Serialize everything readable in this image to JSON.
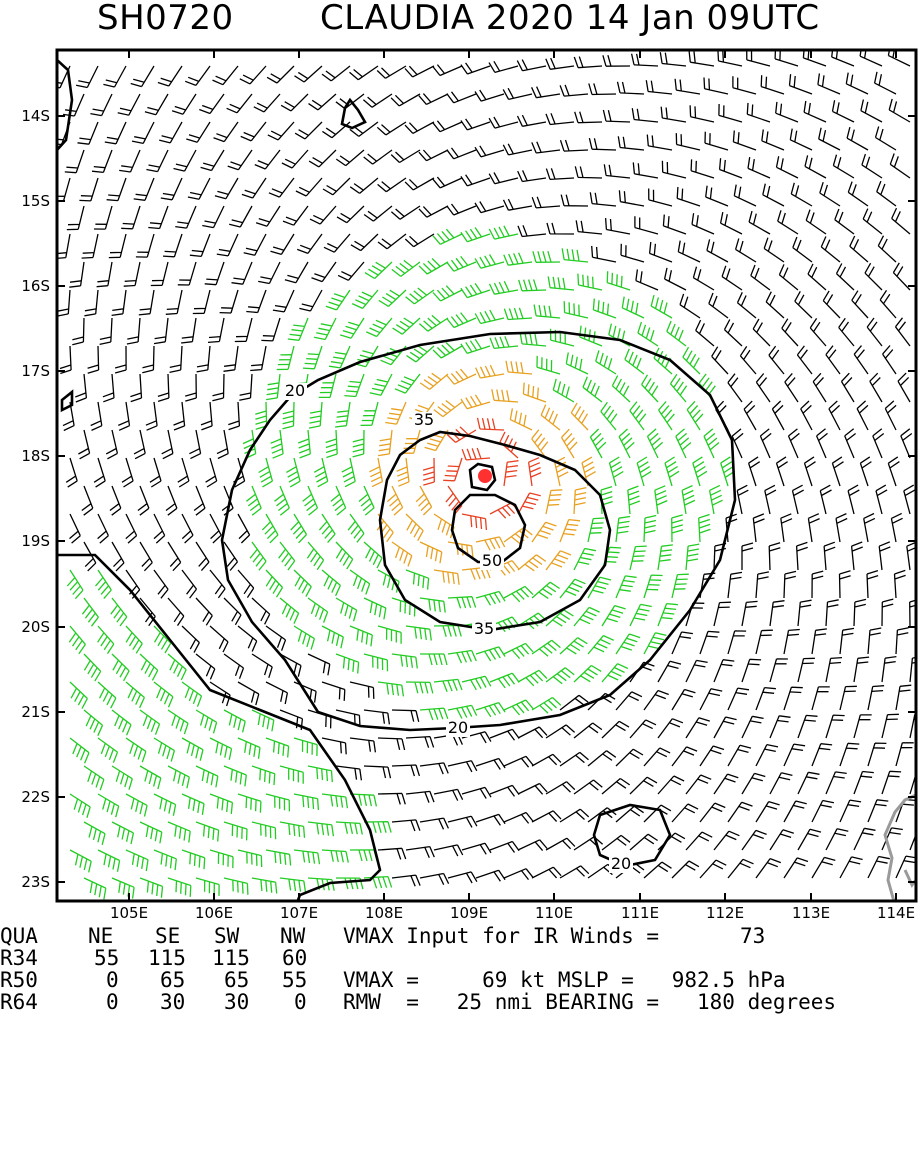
{
  "title": {
    "storm_id": "SH0720",
    "storm": "CLAUDIA 2020 14 Jan 09UTC"
  },
  "map": {
    "lon_ticks": [
      "105E",
      "106E",
      "107E",
      "108E",
      "109E",
      "110E",
      "111E",
      "112E",
      "113E",
      "114E"
    ],
    "lat_ticks": [
      "14S",
      "15S",
      "16S",
      "17S",
      "18S",
      "19S",
      "20S",
      "21S",
      "22S",
      "23S"
    ],
    "contour_labels": [
      "20",
      "35",
      "50",
      "35",
      "20",
      "20"
    ],
    "storm_center": "red-dot",
    "colors": {
      "frame": "#000000",
      "below34": "#000000",
      "r34": "#22cc22",
      "r50": "#e8a020",
      "r64": "#e84020",
      "coast": "#9a9a9a",
      "center": "#ff3030"
    }
  },
  "info": {
    "header": [
      "QUA",
      "NE",
      "SE",
      "SW",
      "NW"
    ],
    "r34": [
      "R34",
      "55",
      "115",
      "115",
      "60"
    ],
    "r50": [
      "R50",
      "0",
      "65",
      "65",
      "55"
    ],
    "r64": [
      "R64",
      "0",
      "30",
      "30",
      "0"
    ],
    "vmax_input_label": "VMAX Input for IR Winds =",
    "vmax_input_value": "73",
    "vmax_line": "VMAX =     69 kt MSLP =   982.5 hPa",
    "rmw_line": "RMW  =   25 nmi BEARING =   180 degrees"
  }
}
